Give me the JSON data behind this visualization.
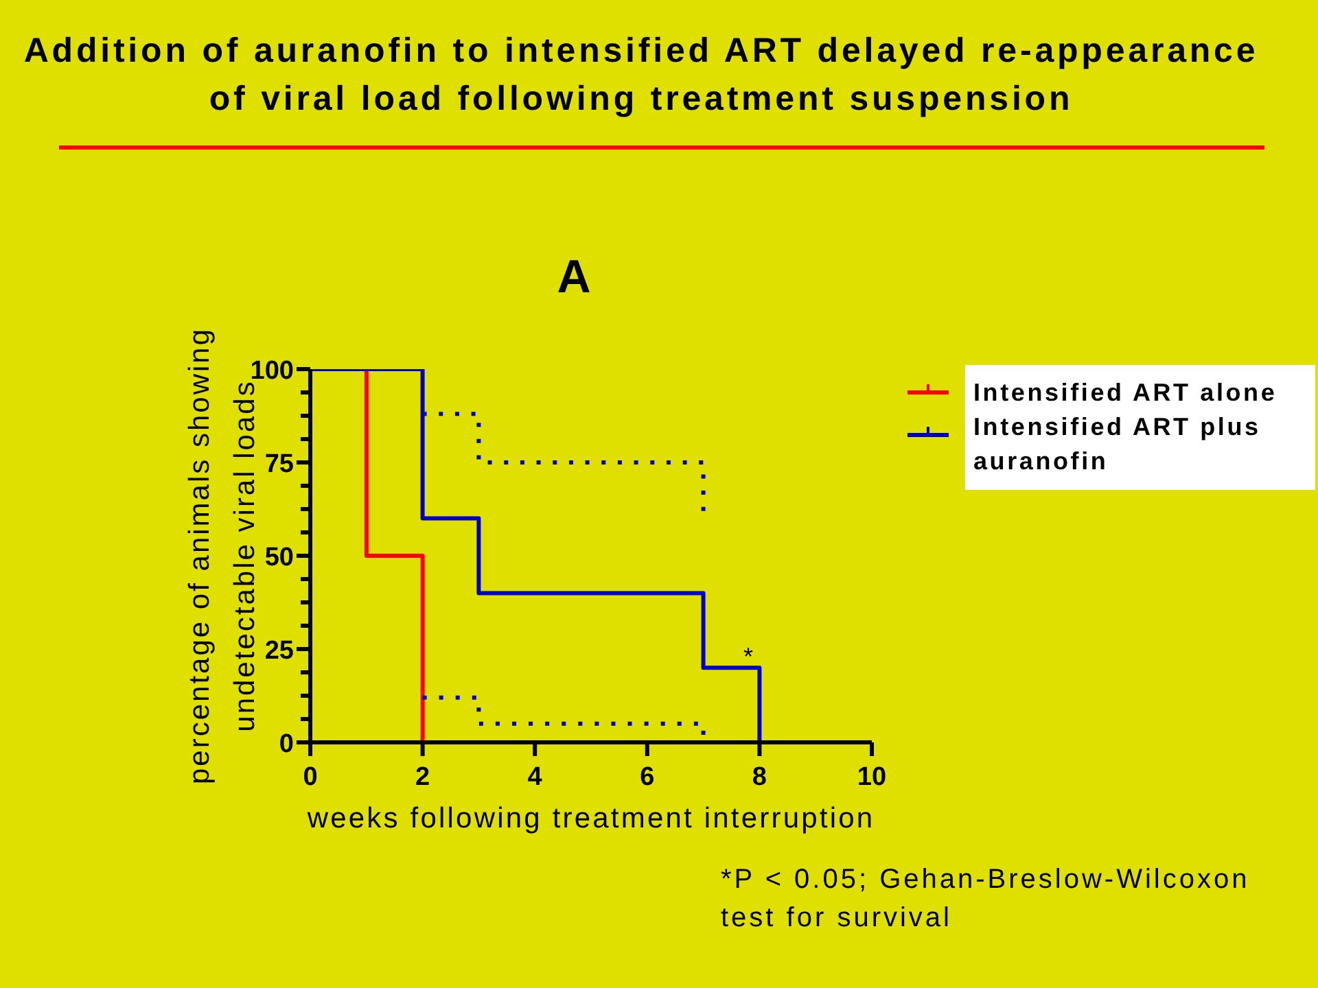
{
  "chart_data": {
    "type": "step",
    "title": "Addition of auranofin to intensified ART delayed re-appearance of viral load following treatment suspension",
    "subtitle": "A",
    "xlabel": "weeks following treatment interruption",
    "ylabel": "percentage of animals showing undetectable viral loads",
    "xlim": [
      0,
      10
    ],
    "xticks": [
      0,
      2,
      4,
      6,
      8,
      10
    ],
    "ylim": [
      0,
      100
    ],
    "yticks": [
      0,
      {
        "value": 6.25,
        "label": null
      },
      {
        "value": 12.5,
        "label": null
      },
      {
        "value": 18.75,
        "label": null
      },
      25,
      {
        "value": 31.25,
        "label": null
      },
      {
        "value": 37.5,
        "label": null
      },
      {
        "value": 43.75,
        "label": null
      },
      50,
      {
        "value": 56.25,
        "label": null
      },
      {
        "value": 62.5,
        "label": null
      },
      {
        "value": 68.75,
        "label": null
      },
      75,
      {
        "value": 81.25,
        "label": null
      },
      {
        "value": 87.5,
        "label": null
      },
      {
        "value": 93.75,
        "label": null
      },
      100
    ],
    "legend": "right",
    "series": [
      {
        "name": "Intensified ART alone",
        "color": "#ff0000",
        "x": [
          0,
          1,
          2
        ],
        "values": [
          100,
          50,
          0
        ]
      },
      {
        "name": "Intensified ART plus auranofin",
        "color": "#0000cc",
        "x": [
          0,
          2,
          3,
          7,
          8
        ],
        "values": [
          100,
          60,
          40,
          20,
          0
        ]
      },
      {
        "color": "#0000cc",
        "line_style": "dotted",
        "x": [
          2,
          3,
          7
        ],
        "values": [
          88,
          75,
          62
        ]
      },
      {
        "color": "#0000cc",
        "line_style": "dotted",
        "x": [
          2,
          3,
          7
        ],
        "values": [
          12,
          5,
          2
        ]
      }
    ],
    "annotations": [
      {
        "text": "*",
        "x": 7.8,
        "y": 20
      },
      "*P < 0.05; Gehan-Breslow-Wilcoxon test for survival"
    ]
  }
}
